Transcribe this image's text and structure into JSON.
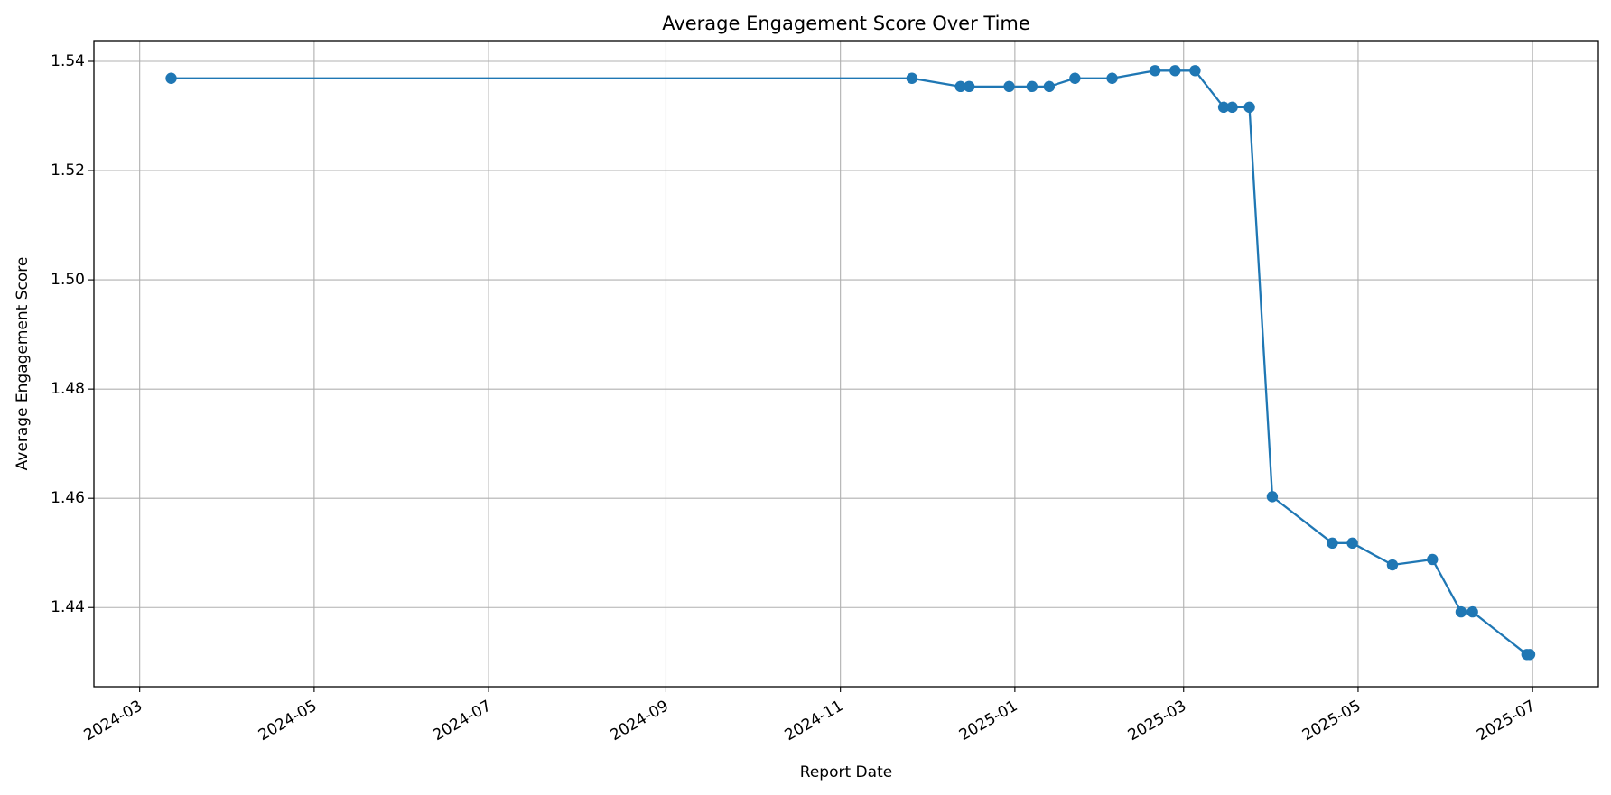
{
  "chart_data": {
    "type": "line",
    "title": "Average Engagement Score Over Time",
    "xlabel": "Report Date",
    "ylabel": "Average Engagement Score",
    "xlim": [
      "2024-02-14",
      "2025-07-24"
    ],
    "ylim": [
      1.4255,
      1.5438
    ],
    "x_ticks": [
      "2024-03-01",
      "2024-05-01",
      "2024-07-01",
      "2024-09-01",
      "2024-11-01",
      "2025-01-01",
      "2025-03-01",
      "2025-05-01",
      "2025-07-01"
    ],
    "x_tick_labels": [
      "2024-03",
      "2024-05",
      "2024-07",
      "2024-09",
      "2024-11",
      "2025-01",
      "2025-03",
      "2025-05",
      "2025-07"
    ],
    "y_ticks": [
      1.44,
      1.46,
      1.48,
      1.5,
      1.52,
      1.54
    ],
    "y_tick_labels": [
      "1.44",
      "1.46",
      "1.48",
      "1.50",
      "1.52",
      "1.54"
    ],
    "grid": true,
    "legend": "none",
    "series": [
      {
        "color": "#1f77b4",
        "marker": "circle",
        "x": [
          "2024-03-12",
          "2024-11-26",
          "2024-12-13",
          "2024-12-16",
          "2024-12-30",
          "2025-01-07",
          "2025-01-13",
          "2025-01-22",
          "2025-02-04",
          "2025-02-19",
          "2025-02-26",
          "2025-03-05",
          "2025-03-15",
          "2025-03-18",
          "2025-03-24",
          "2025-04-01",
          "2025-04-22",
          "2025-04-29",
          "2025-05-13",
          "2025-05-27",
          "2025-06-06",
          "2025-06-10",
          "2025-06-29",
          "2025-06-30"
        ],
        "y": [
          1.5369,
          1.5369,
          1.5354,
          1.5354,
          1.5354,
          1.5354,
          1.5354,
          1.5369,
          1.5369,
          1.5383,
          1.5383,
          1.5383,
          1.5316,
          1.5316,
          1.5316,
          1.4603,
          1.4518,
          1.4518,
          1.4478,
          1.4488,
          1.4392,
          1.4392,
          1.4314,
          1.4314
        ]
      }
    ]
  }
}
